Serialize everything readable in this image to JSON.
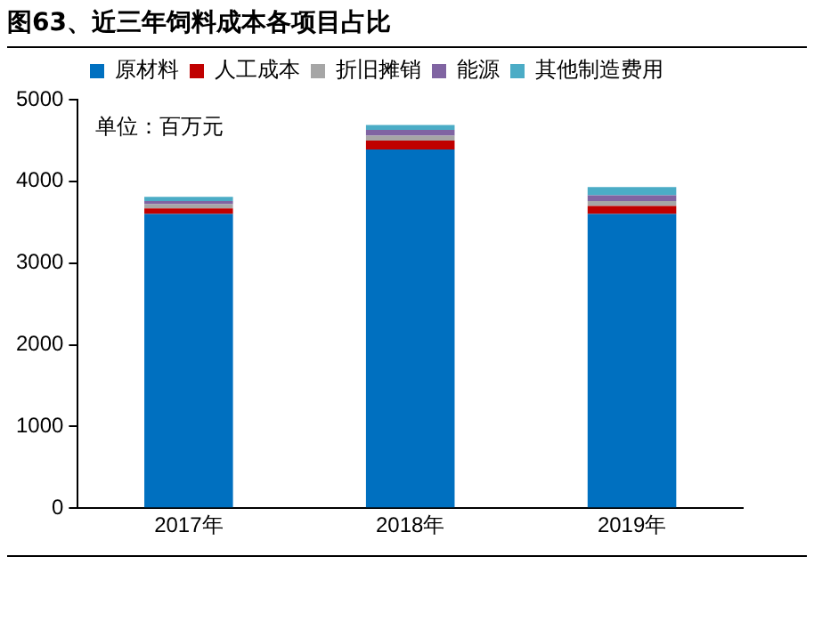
{
  "chart_data": {
    "type": "bar",
    "title": "图63、近三年饲料成本各项目占比",
    "stacked": true,
    "legend": "top",
    "grid": false,
    "categories": [
      "2017年",
      "2018年",
      "2019年"
    ],
    "series": [
      {
        "name": "原材料",
        "color": "#0070c0",
        "values": [
          3600,
          4390,
          3600
        ]
      },
      {
        "name": "人工成本",
        "color": "#c00000",
        "values": [
          70,
          110,
          100
        ]
      },
      {
        "name": "折旧摊销",
        "color": "#a6a6a6",
        "values": [
          50,
          60,
          60
        ]
      },
      {
        "name": "能源",
        "color": "#8064a2",
        "values": [
          40,
          70,
          70
        ]
      },
      {
        "name": "其他制造费用",
        "color": "#4bacc6",
        "values": [
          50,
          60,
          100
        ]
      }
    ],
    "ylim": [
      0,
      5000
    ],
    "yticks": [
      0,
      1000,
      2000,
      3000,
      4000,
      5000
    ],
    "annotations": [
      "单位：百万元"
    ]
  }
}
